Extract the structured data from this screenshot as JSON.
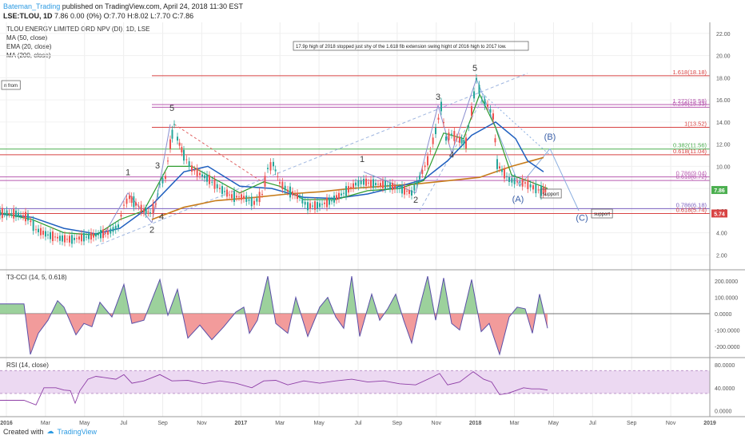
{
  "header": {
    "author": "Bateman_Trading",
    "published": "published on TradingView.com, April 24, 2018 11:30 EST",
    "symbol": "LSE:TLOU, 1D",
    "ohlc": "7.86 0.00 (0%) O:7.70 H:8.02 L:7.70 C:7.86"
  },
  "legend": {
    "title": "TLOU ENERGY LIMITED ORD NPV (DI), 1D, LSE",
    "ma50": "MA (50, close)",
    "ema20": "EMA (20, close)",
    "ma200": "MA (200, close)"
  },
  "annotations": {
    "top_note": "17.9p high of 2018 stopped just shy of the 1.618 fib extension swing hight of 2016 high to 2017 low.",
    "left_note": "n from",
    "support1": "support",
    "support2": "support"
  },
  "footer": {
    "created": "Created with",
    "brand": "TradingView"
  },
  "colors": {
    "up": "#26a69a",
    "down": "#ef5350",
    "ma50": "#1f5fbf",
    "ema20": "#2e9c2e",
    "ma200": "#c77c1a",
    "fib": "#d84343",
    "cci_pos": "#8bc98b",
    "cci_neg": "#f08a8a",
    "rsi_line": "#8e3ea6",
    "rsi_band": "#ecd9f2",
    "tag_dark": "#3c3c3c",
    "tag_red": "#d84343",
    "tag_green": "#4caf50"
  },
  "chart_data": [
    {
      "type": "line",
      "panel": "price",
      "y_ticks": [
        "22.00",
        "20.00",
        "18.00",
        "16.00",
        "14.00",
        "12.00",
        "10.00",
        "8.00",
        "6.00",
        "4.00",
        "2.00"
      ],
      "ylim": [
        0.8,
        23
      ],
      "x_ticks": [
        "2016",
        "Mar",
        "May",
        "Jul",
        "Sep",
        "Nov",
        "2017",
        "Mar",
        "May",
        "Jul",
        "Sep",
        "Nov",
        "2018",
        "Mar",
        "May",
        "Jul",
        "Sep",
        "Nov",
        "2019"
      ],
      "last_price": "7.86",
      "price_label_red": "5.74",
      "fib_levels": [
        {
          "label": "1.618(18.18)",
          "value": 18.18
        },
        {
          "label": "1.272(15.58)",
          "value": 15.58
        },
        {
          "label": "0.236(15.33)",
          "value": 15.33
        },
        {
          "label": "1(13.52)",
          "value": 13.52
        },
        {
          "label": "0.382(11.56)",
          "value": 11.56
        },
        {
          "label": "0.618(11.04)",
          "value": 11.04
        },
        {
          "label": "0.786(9.04)",
          "value": 9.04
        },
        {
          "label": "0.618(8.72)",
          "value": 8.72
        },
        {
          "label": "0.786(6.18)",
          "value": 6.18
        },
        {
          "label": "0.618(5.74)",
          "value": 5.74
        }
      ],
      "wave_labels": [
        "1",
        "2",
        "3",
        "4",
        "5",
        "1",
        "2",
        "3",
        "4",
        "5",
        "(A)",
        "(B)",
        "(C)"
      ],
      "price_series": [
        [
          0,
          5.8
        ],
        [
          20,
          5.7
        ],
        [
          35,
          5.4
        ],
        [
          45,
          4.3
        ],
        [
          60,
          3.8
        ],
        [
          75,
          3.5
        ],
        [
          90,
          3.4
        ],
        [
          105,
          3.6
        ],
        [
          120,
          3.8
        ],
        [
          135,
          4.0
        ],
        [
          148,
          4.6
        ],
        [
          155,
          6.5
        ],
        [
          162,
          7.2
        ],
        [
          170,
          6.6
        ],
        [
          180,
          6.0
        ],
        [
          188,
          5.8
        ],
        [
          195,
          6.6
        ],
        [
          200,
          8.4
        ],
        [
          207,
          9.0
        ],
        [
          213,
          12.0
        ],
        [
          218,
          13.8
        ],
        [
          222,
          12.5
        ],
        [
          230,
          11.0
        ],
        [
          240,
          9.8
        ],
        [
          250,
          9.3
        ],
        [
          262,
          8.8
        ],
        [
          275,
          8.0
        ],
        [
          290,
          7.3
        ],
        [
          305,
          7.2
        ],
        [
          318,
          6.7
        ],
        [
          328,
          7.5
        ],
        [
          335,
          9.8
        ],
        [
          342,
          10.2
        ],
        [
          350,
          8.5
        ],
        [
          360,
          7.8
        ],
        [
          375,
          7.2
        ],
        [
          385,
          6.4
        ],
        [
          400,
          6.5
        ],
        [
          415,
          6.9
        ],
        [
          430,
          7.6
        ],
        [
          445,
          8.4
        ],
        [
          455,
          8.6
        ],
        [
          470,
          8.4
        ],
        [
          485,
          8.3
        ],
        [
          500,
          8.0
        ],
        [
          515,
          7.6
        ],
        [
          525,
          9.0
        ],
        [
          535,
          10.5
        ],
        [
          545,
          13.2
        ],
        [
          552,
          15.4
        ],
        [
          558,
          12.5
        ],
        [
          565,
          12.9
        ],
        [
          575,
          12.4
        ],
        [
          583,
          12.1
        ],
        [
          590,
          15.0
        ],
        [
          596,
          17.9
        ],
        [
          603,
          16.0
        ],
        [
          610,
          15.5
        ],
        [
          617,
          14.5
        ],
        [
          622,
          10.2
        ],
        [
          628,
          9.6
        ],
        [
          637,
          8.8
        ],
        [
          647,
          8.6
        ],
        [
          657,
          8.5
        ],
        [
          667,
          8.1
        ],
        [
          677,
          7.8
        ],
        [
          685,
          7.86
        ]
      ],
      "ma50_series": [
        [
          0,
          5.7
        ],
        [
          40,
          5.4
        ],
        [
          80,
          4.4
        ],
        [
          120,
          3.9
        ],
        [
          150,
          4.4
        ],
        [
          190,
          6.5
        ],
        [
          230,
          9.5
        ],
        [
          260,
          10.0
        ],
        [
          300,
          8.2
        ],
        [
          340,
          8.0
        ],
        [
          380,
          7.2
        ],
        [
          420,
          7.1
        ],
        [
          460,
          7.5
        ],
        [
          500,
          8.2
        ],
        [
          530,
          8.8
        ],
        [
          560,
          10.5
        ],
        [
          590,
          12.8
        ],
        [
          620,
          14.0
        ],
        [
          645,
          12.5
        ],
        [
          660,
          10.5
        ],
        [
          680,
          9.5
        ]
      ],
      "ema20_series": [
        [
          0,
          5.8
        ],
        [
          40,
          5.2
        ],
        [
          80,
          4.0
        ],
        [
          120,
          3.8
        ],
        [
          150,
          5.2
        ],
        [
          180,
          6.0
        ],
        [
          210,
          10.0
        ],
        [
          240,
          10.0
        ],
        [
          270,
          8.8
        ],
        [
          300,
          7.6
        ],
        [
          330,
          8.6
        ],
        [
          350,
          8.2
        ],
        [
          380,
          7.0
        ],
        [
          420,
          7.0
        ],
        [
          460,
          7.8
        ],
        [
          500,
          8.0
        ],
        [
          530,
          8.7
        ],
        [
          555,
          13.0
        ],
        [
          580,
          12.5
        ],
        [
          600,
          16.5
        ],
        [
          620,
          13.5
        ],
        [
          640,
          9.2
        ],
        [
          660,
          8.7
        ],
        [
          685,
          8.0
        ]
      ],
      "ma200_series": [
        [
          190,
          5.2
        ],
        [
          230,
          6.3
        ],
        [
          270,
          6.9
        ],
        [
          320,
          7.2
        ],
        [
          360,
          7.5
        ],
        [
          400,
          7.7
        ],
        [
          440,
          8.0
        ],
        [
          480,
          8.2
        ],
        [
          520,
          8.4
        ],
        [
          560,
          8.7
        ],
        [
          600,
          9.0
        ],
        [
          640,
          10.0
        ],
        [
          680,
          10.8
        ]
      ]
    },
    {
      "type": "area",
      "panel": "T3-CCI",
      "title": "T3-CCI (14, 5, 0.618)",
      "y_ticks": [
        "200.0000",
        "100.0000",
        "0.0000",
        "-100.0000",
        "-200.0000"
      ],
      "ylim": [
        -260,
        260
      ],
      "series": [
        {
          "name": "T3-CCI",
          "values": [
            [
              0,
              60
            ],
            [
              30,
              60
            ],
            [
              38,
              -250
            ],
            [
              48,
              -120
            ],
            [
              60,
              -40
            ],
            [
              72,
              80
            ],
            [
              80,
              40
            ],
            [
              95,
              -130
            ],
            [
              105,
              -60
            ],
            [
              115,
              -80
            ],
            [
              125,
              70
            ],
            [
              140,
              -20
            ],
            [
              155,
              180
            ],
            [
              165,
              -60
            ],
            [
              180,
              -40
            ],
            [
              200,
              210
            ],
            [
              210,
              -10
            ],
            [
              222,
              150
            ],
            [
              235,
              -150
            ],
            [
              250,
              -70
            ],
            [
              265,
              -160
            ],
            [
              280,
              -80
            ],
            [
              295,
              10
            ],
            [
              305,
              40
            ],
            [
              312,
              -120
            ],
            [
              322,
              -40
            ],
            [
              335,
              230
            ],
            [
              345,
              -60
            ],
            [
              360,
              -120
            ],
            [
              370,
              100
            ],
            [
              385,
              -140
            ],
            [
              400,
              40
            ],
            [
              410,
              100
            ],
            [
              420,
              -20
            ],
            [
              430,
              -90
            ],
            [
              440,
              230
            ],
            [
              450,
              -140
            ],
            [
              465,
              120
            ],
            [
              475,
              -40
            ],
            [
              485,
              30
            ],
            [
              495,
              120
            ],
            [
              505,
              -40
            ],
            [
              515,
              -180
            ],
            [
              525,
              40
            ],
            [
              535,
              230
            ],
            [
              545,
              -40
            ],
            [
              555,
              220
            ],
            [
              565,
              -60
            ],
            [
              575,
              -100
            ],
            [
              590,
              210
            ],
            [
              602,
              -110
            ],
            [
              612,
              -60
            ],
            [
              625,
              -250
            ],
            [
              637,
              -20
            ],
            [
              647,
              40
            ],
            [
              657,
              30
            ],
            [
              666,
              -120
            ],
            [
              675,
              120
            ],
            [
              685,
              -90
            ]
          ]
        }
      ]
    },
    {
      "type": "line",
      "panel": "RSI",
      "title": "RSI (14, close)",
      "y_ticks": [
        "80.0000",
        "40.0000",
        "0.0000"
      ],
      "ylim": [
        -5,
        90
      ],
      "bands": [
        30,
        70
      ],
      "series": [
        {
          "name": "RSI",
          "values": [
            [
              0,
              18
            ],
            [
              30,
              18
            ],
            [
              45,
              10
            ],
            [
              55,
              40
            ],
            [
              60,
              40
            ],
            [
              70,
              40
            ],
            [
              80,
              36
            ],
            [
              88,
              35
            ],
            [
              94,
              13
            ],
            [
              100,
              35
            ],
            [
              110,
              55
            ],
            [
              120,
              60
            ],
            [
              130,
              58
            ],
            [
              145,
              55
            ],
            [
              155,
              63
            ],
            [
              165,
              48
            ],
            [
              180,
              52
            ],
            [
              200,
              63
            ],
            [
              215,
              52
            ],
            [
              235,
              53
            ],
            [
              255,
              47
            ],
            [
              275,
              52
            ],
            [
              295,
              48
            ],
            [
              315,
              40
            ],
            [
              330,
              52
            ],
            [
              345,
              53
            ],
            [
              360,
              45
            ],
            [
              380,
              52
            ],
            [
              400,
              48
            ],
            [
              420,
              52
            ],
            [
              440,
              55
            ],
            [
              460,
              50
            ],
            [
              480,
              52
            ],
            [
              500,
              47
            ],
            [
              520,
              45
            ],
            [
              540,
              58
            ],
            [
              550,
              65
            ],
            [
              560,
              45
            ],
            [
              575,
              50
            ],
            [
              592,
              68
            ],
            [
              605,
              55
            ],
            [
              615,
              50
            ],
            [
              625,
              28
            ],
            [
              635,
              30
            ],
            [
              645,
              35
            ],
            [
              655,
              40
            ],
            [
              665,
              38
            ],
            [
              675,
              38
            ],
            [
              685,
              36
            ]
          ]
        }
      ]
    }
  ]
}
